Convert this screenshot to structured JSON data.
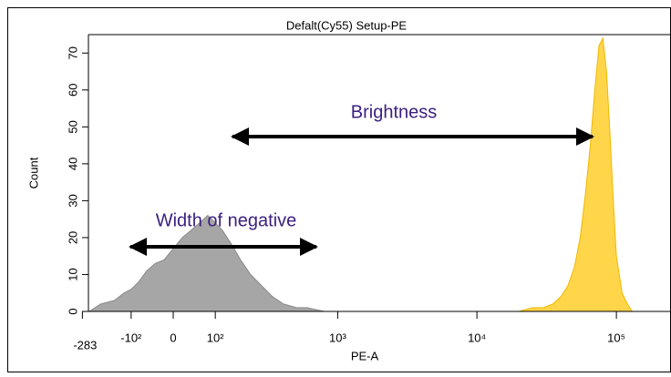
{
  "chart_data": {
    "type": "histogram",
    "title": "Defalt(Cy55) Setup-PE",
    "x_label": "PE-A",
    "y_label": "Count",
    "x_scale": "biexponential",
    "xlim": [
      -283,
      262144
    ],
    "xticks": [
      {
        "value": -283,
        "label": "-283"
      },
      {
        "value": -100,
        "label": "-10²"
      },
      0,
      {
        "value": 100,
        "label": "10²"
      },
      {
        "value": 1000,
        "label": "10³"
      },
      {
        "value": 10000,
        "label": "10⁴"
      },
      {
        "value": 100000,
        "label": "10⁵"
      }
    ],
    "ylim": [
      0,
      75
    ],
    "yticks": [
      0,
      10,
      20,
      30,
      40,
      50,
      60,
      70
    ],
    "series": [
      {
        "color": "#a6a6a6",
        "x": [
          -250,
          -200,
          -150,
          -120,
          -100,
          -80,
          -60,
          -40,
          -20,
          0,
          20,
          40,
          60,
          80,
          100,
          120,
          150,
          180,
          220,
          270,
          330,
          400,
          500,
          600,
          800
        ],
        "values": [
          0,
          2,
          3,
          5,
          6,
          8,
          11,
          13,
          14,
          17,
          20,
          22,
          24,
          26,
          24,
          22,
          18,
          14,
          10,
          7,
          4,
          2,
          1,
          1,
          0
        ]
      },
      {
        "color": "#ffd54a",
        "x": [
          20000,
          25000,
          30000,
          35000,
          40000,
          45000,
          50000,
          55000,
          60000,
          65000,
          70000,
          75000,
          80000,
          85000,
          90000,
          95000,
          100000,
          110000,
          120000,
          130000
        ],
        "values": [
          0,
          1,
          1,
          2,
          4,
          7,
          12,
          20,
          32,
          45,
          60,
          72,
          74,
          65,
          48,
          30,
          15,
          5,
          2,
          0
        ]
      }
    ],
    "annotations": [
      "Brightness",
      "Width of negative"
    ]
  }
}
